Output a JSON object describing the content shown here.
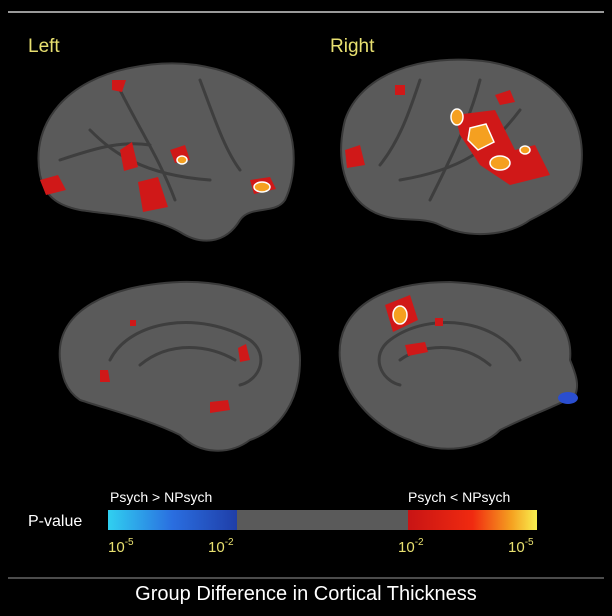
{
  "panels": {
    "left_label": "Left",
    "right_label": "Right"
  },
  "colorbar": {
    "axis_label": "P-value",
    "left_caption": "Psych > NPsych",
    "right_caption": "Psych < NPsych",
    "ticks": [
      {
        "base": "10",
        "exponent": "-5"
      },
      {
        "base": "10",
        "exponent": "-2"
      },
      {
        "base": "10",
        "exponent": "-2"
      },
      {
        "base": "10",
        "exponent": "-5"
      }
    ]
  },
  "title": "Group Difference in Cortical Thickness"
}
